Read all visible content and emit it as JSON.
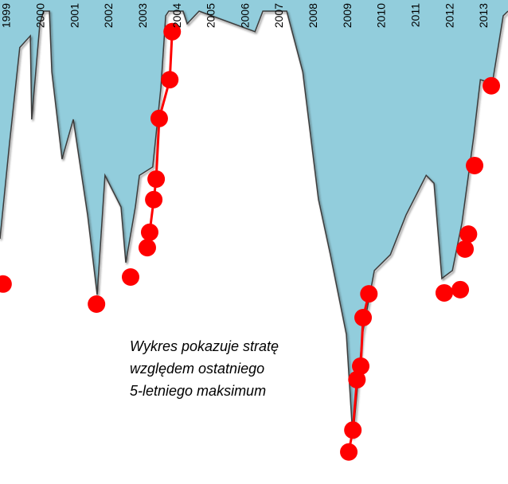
{
  "chart_data": {
    "type": "area",
    "annotation": [
      "Wykres pokazuje stratę",
      "względem ostatniego",
      "5-letniego maksimum"
    ],
    "xlim": [
      1998.79,
      2013.69
    ],
    "xticks": [
      1999,
      2000,
      2001,
      2002,
      2003,
      2004,
      2005,
      2006,
      2007,
      2008,
      2009,
      2010,
      2011,
      2012,
      2013
    ],
    "ylim": [
      -100,
      0
    ],
    "series": [
      {
        "color": "#92cddc",
        "x": [
          1998.79,
          1999.07,
          1999.37,
          1999.68,
          1999.72,
          1999.96,
          2000.07,
          2000.24,
          2000.31,
          2000.61,
          2000.94,
          2001.36,
          2001.64,
          2001.87,
          2002.34,
          2002.48,
          2002.76,
          2002.88,
          2003.27,
          2003.51,
          2003.65,
          2003.74,
          2004.16,
          2004.28,
          2004.63,
          2006.27,
          2006.5,
          2007.2,
          2007.67,
          2008.13,
          2008.48,
          2008.95,
          2009.14,
          2009.42,
          2009.77,
          2010.24,
          2010.7,
          2011.29,
          2011.52,
          2011.75,
          2012.06,
          2012.34,
          2012.69,
          2012.88,
          2013.23,
          2013.55,
          2013.69
        ],
        "values": [
          -48.8,
          -28.3,
          -7.8,
          -5.3,
          -23.2,
          -2.7,
          0,
          0,
          -13.0,
          -31.7,
          -23.2,
          -43.7,
          -60.8,
          -35.2,
          -42.0,
          -53.9,
          -42.0,
          -35.2,
          -33.4,
          -16.4,
          -1.0,
          0,
          0,
          -2.7,
          0,
          -4.4,
          0,
          0,
          -13.0,
          -40.3,
          -52.2,
          -69.3,
          -91.5,
          -69.3,
          -55.6,
          -52.2,
          -43.7,
          -35.2,
          -36.9,
          -57.3,
          -55.6,
          -45.4,
          -26.6,
          -14.7,
          -15.5,
          -1.0,
          0
        ]
      },
      {
        "color": "#ff0000",
        "x": [
          1998.88,
          null,
          2001.62,
          null,
          2002.62,
          null,
          2003.11,
          2003.18,
          2003.3,
          2003.37,
          2003.46,
          2003.77,
          2003.84,
          null,
          2009.02,
          2009.14,
          2009.26,
          2009.37,
          2009.44,
          2009.61,
          null,
          2011.82,
          null,
          2012.29,
          null,
          2012.43,
          null,
          2012.53,
          null,
          2012.71,
          null,
          2013.2
        ],
        "values": [
          -58.5,
          null,
          -62.8,
          null,
          -57.0,
          null,
          -50.7,
          -47.4,
          -40.4,
          -36.0,
          -23.0,
          -14.7,
          -4.4,
          null,
          -94.5,
          -89.8,
          -79.0,
          -76.1,
          -65.7,
          -60.6,
          null,
          -60.4,
          null,
          -59.7,
          null,
          -51.0,
          null,
          -47.8,
          null,
          -33.1,
          null,
          -16.0
        ]
      }
    ]
  }
}
